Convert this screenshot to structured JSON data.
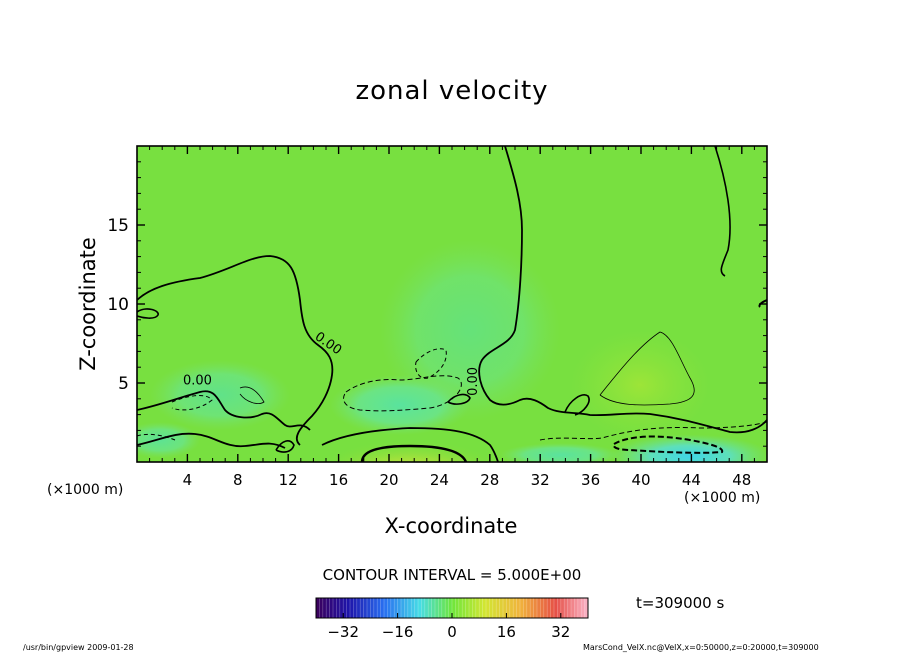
{
  "chart_data": {
    "type": "heatmap",
    "title": "zonal velocity",
    "xlabel": "X-coordinate",
    "ylabel": "Z-coordinate",
    "x_unit_left": "(×1000 m)",
    "x_unit_right": "(×1000 m)",
    "x_range": [
      0,
      50
    ],
    "y_range": [
      0,
      20
    ],
    "x_ticks": [
      4,
      8,
      12,
      16,
      20,
      24,
      28,
      32,
      36,
      40,
      44,
      48
    ],
    "x_tick_labels": [
      "4",
      "8",
      "12",
      "16",
      "20",
      "24",
      "28",
      "32",
      "36",
      "40",
      "44",
      "48"
    ],
    "y_ticks": [
      5,
      10,
      15
    ],
    "y_tick_labels": [
      "5",
      "10",
      "15"
    ],
    "contour_labels": [
      {
        "text": "0.00",
        "x": 15.0,
        "y": 7.3,
        "rotate": 35
      },
      {
        "text": "0.00",
        "x": 4.8,
        "y": 4.9,
        "rotate": 0
      },
      {
        "text": "0.00",
        "x": 27.0,
        "y": 5.1,
        "rotate": -90
      }
    ],
    "contour_interval": "CONTOUR INTERVAL = 5.000E+00",
    "colorbar": {
      "min": -40,
      "max": 40,
      "ticks": [
        -32,
        -16,
        0,
        16,
        32
      ],
      "tick_labels": [
        "−32",
        "−16",
        "0",
        "16",
        "32"
      ]
    },
    "time": "t=309000 s",
    "footer_left": "/usr/bin/gpview  2009-01-28",
    "footer_right": "MarsCond_VelX.nc@VelX,x=0:50000,z=0:20000,t=309000"
  }
}
